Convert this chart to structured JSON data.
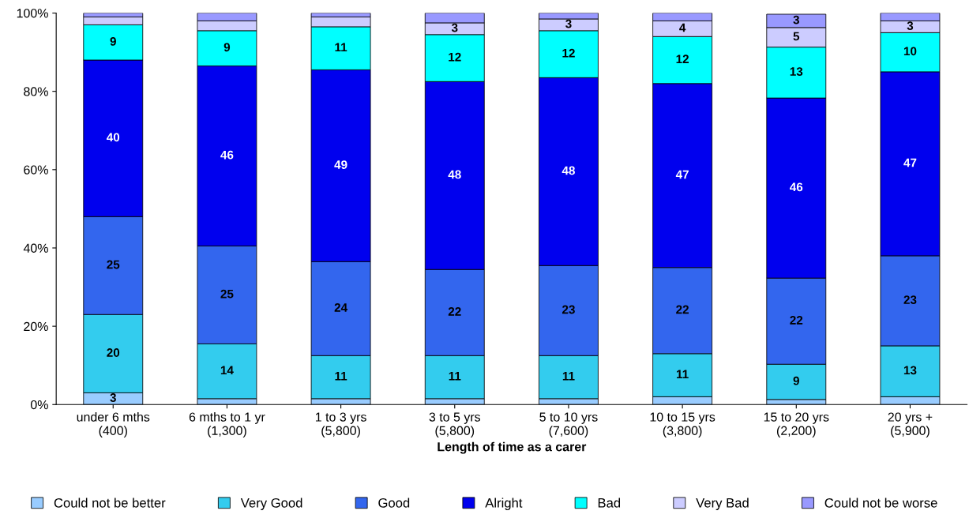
{
  "chart_data": {
    "type": "bar",
    "stacked": true,
    "xlabel": "Length of time as a carer",
    "categories": [
      "under 6 mths\n(400)",
      "6 mths to 1 yr\n(1,300)",
      "1 to 3 yrs\n(5,800)",
      "3 to 5 yrs\n(5,800)",
      "5 to 10 yrs\n(7,600)",
      "10 to 15 yrs\n(3,800)",
      "15 to 20 yrs\n(2,200)",
      "20 yrs +\n(5,900)"
    ],
    "series": [
      {
        "name": "Could not be better",
        "color": "#99ccff",
        "values": [
          3,
          1.5,
          1.5,
          1.5,
          1.5,
          2,
          1.3,
          2
        ],
        "value_labels": [
          "3",
          null,
          null,
          null,
          null,
          null,
          null,
          null
        ]
      },
      {
        "name": "Very Good",
        "color": "#33ccee",
        "values": [
          20,
          14,
          11,
          11,
          11,
          11,
          9,
          13
        ],
        "value_labels": [
          "20",
          "14",
          "11",
          "11",
          "11",
          "11",
          "9",
          "13"
        ]
      },
      {
        "name": "Good",
        "color": "#3366ee",
        "values": [
          25,
          25,
          24,
          22,
          23,
          22,
          22,
          23
        ],
        "value_labels": [
          "25",
          "25",
          "24",
          "22",
          "23",
          "22",
          "22",
          "23"
        ]
      },
      {
        "name": "Alright",
        "color": "#0000ee",
        "values": [
          40,
          46,
          49,
          48,
          48,
          47,
          46,
          47
        ],
        "value_labels": [
          "40",
          "46",
          "49",
          "48",
          "48",
          "47",
          "46",
          "47"
        ]
      },
      {
        "name": "Bad",
        "color": "#00ffff",
        "values": [
          9,
          9,
          11,
          12,
          12,
          12,
          13,
          10
        ],
        "value_labels": [
          "9",
          "9",
          "11",
          "12",
          "12",
          "12",
          "13",
          "10"
        ]
      },
      {
        "name": "Very Bad",
        "color": "#ccccff",
        "values": [
          2,
          2.5,
          2.5,
          3,
          3,
          4,
          5,
          3
        ],
        "value_labels": [
          null,
          null,
          null,
          "3",
          "3",
          "4",
          "5",
          "3"
        ]
      },
      {
        "name": "Could not be worse",
        "color": "#9999ff",
        "values": [
          1,
          2,
          1,
          2.5,
          1.5,
          2,
          3.4,
          2
        ],
        "value_labels": [
          null,
          null,
          null,
          null,
          null,
          null,
          "3",
          null
        ]
      }
    ],
    "ylim": [
      0,
      100
    ],
    "yticks": [
      {
        "value": 0,
        "label": "0%"
      },
      {
        "value": 20,
        "label": "20%"
      },
      {
        "value": 40,
        "label": "40%"
      },
      {
        "value": 60,
        "label": "60%"
      },
      {
        "value": 80,
        "label": "80%"
      },
      {
        "value": 100,
        "label": "100%"
      }
    ],
    "grid": false,
    "legend": "bottom"
  }
}
